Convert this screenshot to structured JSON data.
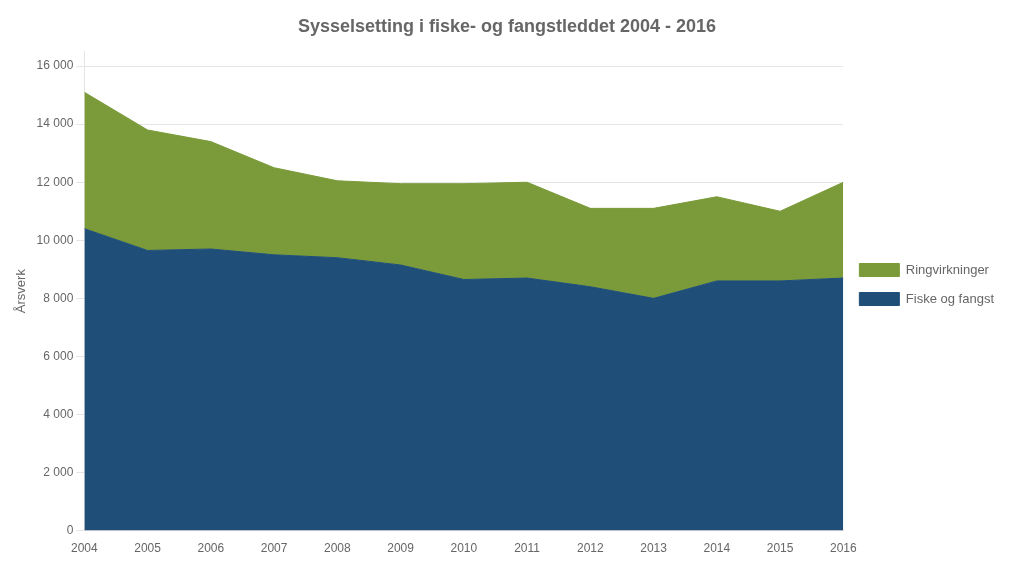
{
  "chart_data": {
    "type": "area",
    "title": "Sysselsetting i fiske- og fangstleddet 2004 - 2016",
    "ylabel": "Årsverk",
    "x": [
      2004,
      2005,
      2006,
      2007,
      2008,
      2009,
      2010,
      2011,
      2012,
      2013,
      2014,
      2015,
      2016
    ],
    "series": [
      {
        "name": "Fiske og fangst",
        "color": "#1F4E79",
        "values": [
          10400,
          9650,
          9700,
          9500,
          9400,
          9150,
          8650,
          8700,
          8400,
          8000,
          8600,
          8600,
          8700
        ]
      },
      {
        "name": "Ringvirkninger",
        "color": "#7B9B3A",
        "values": [
          4700,
          4150,
          3700,
          3000,
          2650,
          2800,
          3300,
          3300,
          2700,
          3100,
          2900,
          2400,
          3300
        ]
      }
    ],
    "stacked": true,
    "xlim": [
      2004,
      2016
    ],
    "xticks": [
      2004,
      2005,
      2006,
      2007,
      2008,
      2009,
      2010,
      2011,
      2012,
      2013,
      2014,
      2015,
      2016
    ],
    "ylim": [
      0,
      16500
    ],
    "yticks": [
      0,
      {
        "value": 2000,
        "label": "2 000"
      },
      {
        "value": 4000,
        "label": "4 000"
      },
      {
        "value": 6000,
        "label": "6 000"
      },
      {
        "value": 8000,
        "label": "8 000"
      },
      {
        "value": 10000,
        "label": "10 000"
      },
      {
        "value": 12000,
        "label": "12 000"
      },
      {
        "value": 14000,
        "label": "14 000"
      },
      {
        "value": 16000,
        "label": "16 000"
      }
    ],
    "grid": "y",
    "legend": "right"
  }
}
